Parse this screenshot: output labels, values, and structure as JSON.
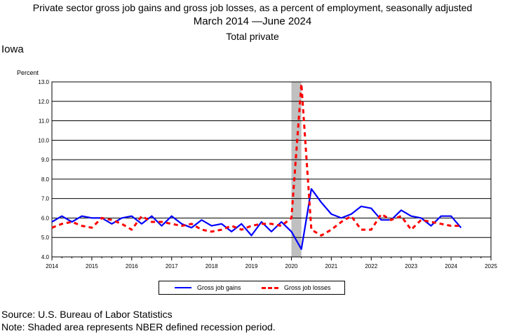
{
  "header": {
    "title_line1": "Private sector gross job gains and gross job losses, as a percent of employment, seasonally adjusted",
    "title_line2": "March 2014 —June 2024",
    "title_line3": "Total private"
  },
  "area_label": "Iowa",
  "footer": {
    "source": "Source: U.S. Bureau of Labor Statistics",
    "note": "Note: Shaded area represents NBER defined recession period."
  },
  "colors": {
    "gains": "#0000ff",
    "losses": "#ff0000",
    "recession": "#c0c0c0",
    "grid": "#000000"
  },
  "chart_data": {
    "type": "line",
    "ylabel": "Percent",
    "ylim": [
      4.0,
      13.0
    ],
    "xlim": [
      2014,
      2025
    ],
    "yticks": [
      "4.0",
      "5.0",
      "6.0",
      "7.0",
      "8.0",
      "9.0",
      "10.0",
      "11.0",
      "12.0",
      "13.0"
    ],
    "xticks": [
      "2014",
      "2015",
      "2016",
      "2017",
      "2018",
      "2019",
      "2020",
      "2021",
      "2022",
      "2023",
      "2024",
      "2025"
    ],
    "grid": true,
    "legend_position": "bottom",
    "recession": {
      "start": 2020.0,
      "end": 2020.25
    },
    "x": [
      2014.0,
      2014.25,
      2014.5,
      2014.75,
      2015.0,
      2015.25,
      2015.5,
      2015.75,
      2016.0,
      2016.25,
      2016.5,
      2016.75,
      2017.0,
      2017.25,
      2017.5,
      2017.75,
      2018.0,
      2018.25,
      2018.5,
      2018.75,
      2019.0,
      2019.25,
      2019.5,
      2019.75,
      2020.0,
      2020.25,
      2020.5,
      2020.75,
      2021.0,
      2021.25,
      2021.5,
      2021.75,
      2022.0,
      2022.25,
      2022.5,
      2022.75,
      2023.0,
      2023.25,
      2023.5,
      2023.75,
      2024.0,
      2024.25
    ],
    "series": [
      {
        "name": "Gross job gains",
        "values": [
          5.8,
          6.1,
          5.8,
          6.1,
          6.0,
          6.0,
          5.7,
          6.0,
          6.1,
          5.7,
          6.1,
          5.6,
          6.1,
          5.7,
          5.5,
          5.9,
          5.6,
          5.7,
          5.3,
          5.7,
          5.1,
          5.8,
          5.3,
          5.8,
          5.3,
          4.4,
          7.5,
          6.8,
          6.2,
          6.0,
          6.2,
          6.6,
          6.5,
          5.9,
          5.9,
          6.4,
          6.1,
          6.0,
          5.6,
          6.1,
          6.1,
          5.5
        ]
      },
      {
        "name": "Gross job losses",
        "values": [
          5.5,
          5.7,
          5.8,
          5.6,
          5.5,
          6.0,
          5.9,
          5.7,
          5.4,
          6.1,
          5.8,
          5.8,
          5.7,
          5.6,
          5.7,
          5.4,
          5.3,
          5.4,
          5.6,
          5.4,
          5.6,
          5.7,
          5.7,
          5.6,
          6.0,
          12.9,
          5.4,
          5.1,
          5.4,
          5.8,
          6.1,
          5.4,
          5.4,
          6.2,
          5.9,
          6.1,
          5.4,
          5.9,
          5.8,
          5.7,
          5.6,
          5.6
        ]
      }
    ]
  }
}
